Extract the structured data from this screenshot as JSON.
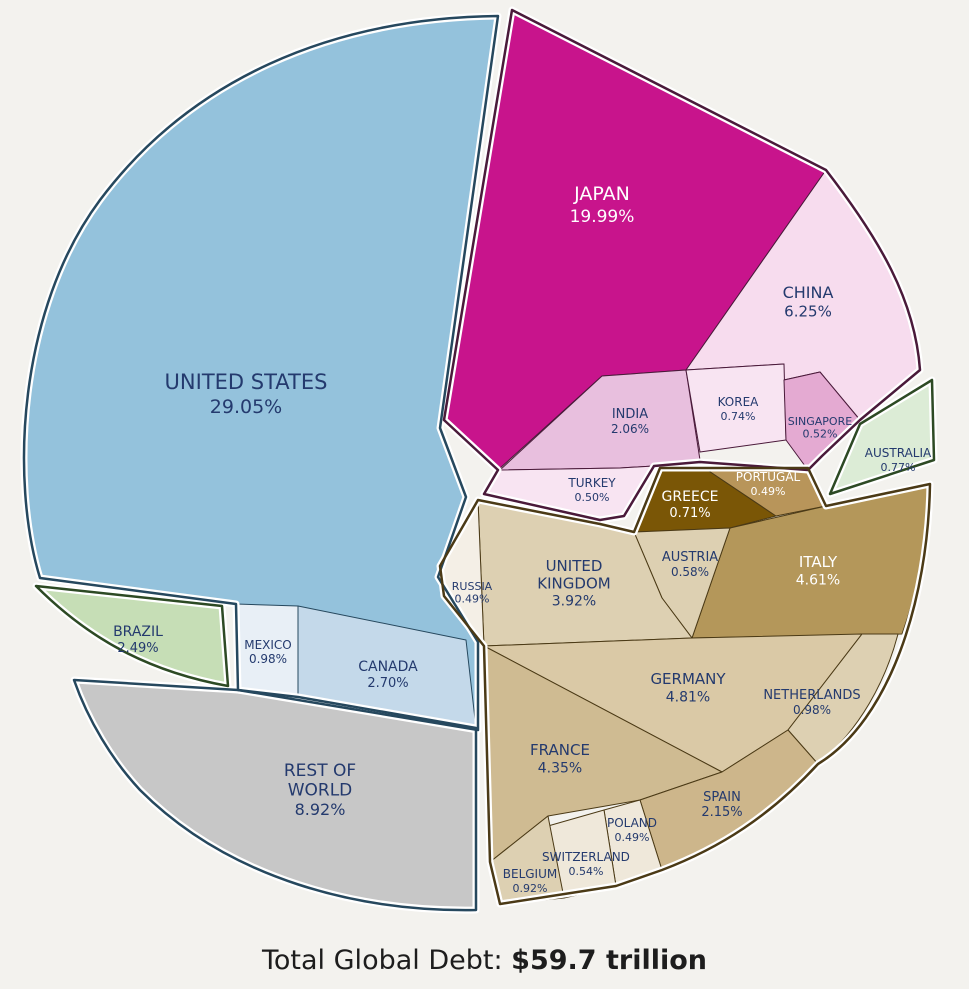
{
  "chart_data": {
    "type": "pie",
    "subtype": "voronoi-treemap",
    "title": "",
    "footer_label": "Total Global Debt:",
    "footer_value": "$59.7 trillion",
    "unit": "share of total global debt (%)",
    "slices": [
      {
        "name": "UNITED STATES",
        "value": 29.05,
        "value_label": "29.05%",
        "color": "#94c2dc",
        "group": "americas"
      },
      {
        "name": "JAPAN",
        "value": 19.99,
        "value_label": "19.99%",
        "color": "#c8148c",
        "group": "asia"
      },
      {
        "name": "CHINA",
        "value": 6.25,
        "value_label": "6.25%",
        "color": "#f7dcee",
        "group": "asia"
      },
      {
        "name": "INDIA",
        "value": 2.06,
        "value_label": "2.06%",
        "color": "#e8bfde",
        "group": "asia"
      },
      {
        "name": "KOREA",
        "value": 0.74,
        "value_label": "0.74%",
        "color": "#f8e4f2",
        "group": "asia"
      },
      {
        "name": "SINGAPORE",
        "value": 0.52,
        "value_label": "0.52%",
        "color": "#e4aad2",
        "group": "asia"
      },
      {
        "name": "TURKEY",
        "value": 0.5,
        "value_label": "0.50%",
        "color": "#f8e4f2",
        "group": "asia"
      },
      {
        "name": "AUSTRALIA",
        "value": 0.77,
        "value_label": "0.77%",
        "color": "#dcecd6",
        "group": "oceania"
      },
      {
        "name": "GREECE",
        "value": 0.71,
        "value_label": "0.71%",
        "color": "#7a5606",
        "group": "europe"
      },
      {
        "name": "PORTUGAL",
        "value": 0.49,
        "value_label": "0.49%",
        "color": "#b8955a",
        "group": "europe"
      },
      {
        "name": "ITALY",
        "value": 4.61,
        "value_label": "4.61%",
        "color": "#b4975a",
        "group": "europe"
      },
      {
        "name": "AUSTRIA",
        "value": 0.58,
        "value_label": "0.58%",
        "color": "#ddd0b2",
        "group": "europe"
      },
      {
        "name": "UNITED KINGDOM",
        "value": 3.92,
        "value_label": "3.92%",
        "color": "#ddd0b2",
        "group": "europe"
      },
      {
        "name": "RUSSIA",
        "value": 0.49,
        "value_label": "0.49%",
        "color": "#f4efe6",
        "group": "europe"
      },
      {
        "name": "GERMANY",
        "value": 4.81,
        "value_label": "4.81%",
        "color": "#dac9a6",
        "group": "europe"
      },
      {
        "name": "NETHERLANDS",
        "value": 0.98,
        "value_label": "0.98%",
        "color": "#ddd0b2",
        "group": "europe"
      },
      {
        "name": "FRANCE",
        "value": 4.35,
        "value_label": "4.35%",
        "color": "#cfbb92",
        "group": "europe"
      },
      {
        "name": "SPAIN",
        "value": 2.15,
        "value_label": "2.15%",
        "color": "#cdb68b",
        "group": "europe"
      },
      {
        "name": "POLAND",
        "value": 0.49,
        "value_label": "0.49%",
        "color": "#efe8da",
        "group": "europe"
      },
      {
        "name": "SWITZERLAND",
        "value": 0.54,
        "value_label": "0.54%",
        "color": "#efe8da",
        "group": "europe"
      },
      {
        "name": "BELGIUM",
        "value": 0.92,
        "value_label": "0.92%",
        "color": "#ddd0b2",
        "group": "europe"
      },
      {
        "name": "BRAZIL",
        "value": 2.49,
        "value_label": "2.49%",
        "color": "#c6deb6",
        "group": "americas"
      },
      {
        "name": "MEXICO",
        "value": 0.98,
        "value_label": "0.98%",
        "color": "#e8eff6",
        "group": "americas"
      },
      {
        "name": "CANADA",
        "value": 2.7,
        "value_label": "2.70%",
        "color": "#c4d9ea",
        "group": "americas"
      },
      {
        "name": "REST OF WORLD",
        "value": 8.92,
        "value_label": "8.92%",
        "color": "#c7c7c7",
        "group": "other"
      }
    ],
    "group_outline_colors": {
      "americas": "#26485e",
      "asia": "#4a1a3a",
      "oceania": "#2d4a24",
      "europe": "#4b3a16",
      "other": "#26485e"
    },
    "label_colors": {
      "dark": "#243a6e",
      "light": "#ffffff"
    }
  }
}
